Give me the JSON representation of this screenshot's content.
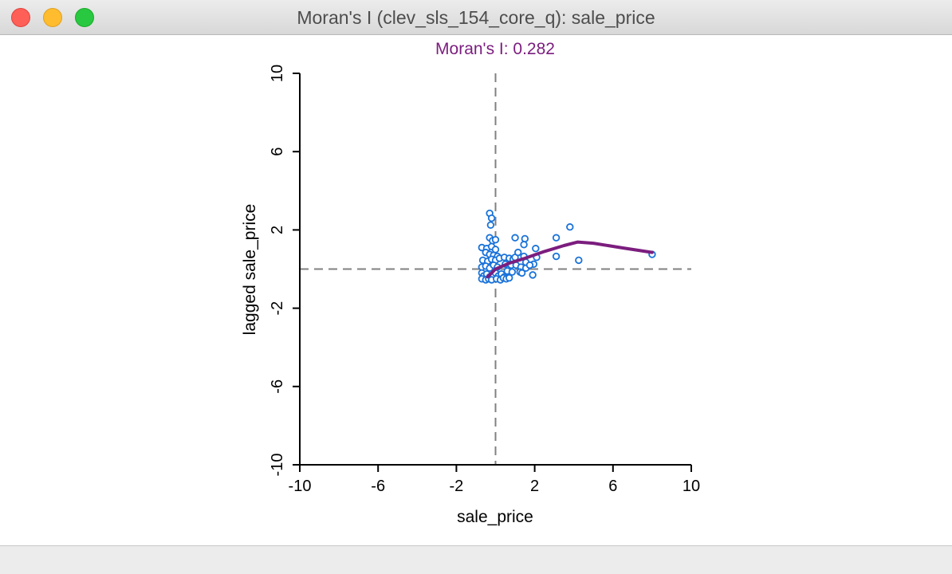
{
  "window": {
    "title": "Moran's I (clev_sls_154_core_q): sale_price"
  },
  "colors": {
    "title": "#7b1d7e",
    "points": "#1a73d9",
    "smoother": "#7b1d7e",
    "reference_lines": "#808080"
  },
  "chart_data": {
    "type": "scatter",
    "title": "Moran's I: 0.282",
    "xlabel": "sale_price",
    "ylabel": "lagged sale_price",
    "xlim": [
      -10,
      10
    ],
    "ylim": [
      -10,
      10
    ],
    "xticks": [
      "-10",
      "-6",
      "-2",
      "2",
      "6",
      "10"
    ],
    "yticks": [
      "-10",
      "-6",
      "-2",
      "2",
      "6",
      "10"
    ],
    "xtick_values": [
      -10,
      -6,
      -2,
      2,
      6,
      10
    ],
    "ytick_values": [
      -10,
      -6,
      -2,
      2,
      6,
      10
    ],
    "grid": false,
    "reference_lines": {
      "x": 0,
      "y": 0,
      "style": "dashed"
    },
    "points": [
      [
        -0.3,
        2.85
      ],
      [
        -0.2,
        2.6
      ],
      [
        -0.25,
        2.25
      ],
      [
        -0.3,
        1.6
      ],
      [
        -0.15,
        1.45
      ],
      [
        0.0,
        1.5
      ],
      [
        -0.7,
        1.1
      ],
      [
        -0.45,
        1.05
      ],
      [
        -0.2,
        1.15
      ],
      [
        0.0,
        1.0
      ],
      [
        -0.5,
        0.85
      ],
      [
        -0.3,
        0.75
      ],
      [
        -0.1,
        0.7
      ],
      [
        0.1,
        0.65
      ],
      [
        -0.65,
        0.45
      ],
      [
        -0.4,
        0.4
      ],
      [
        -0.2,
        0.5
      ],
      [
        0.0,
        0.45
      ],
      [
        0.2,
        0.55
      ],
      [
        -0.7,
        0.1
      ],
      [
        -0.5,
        0.15
      ],
      [
        -0.3,
        0.05
      ],
      [
        -0.1,
        0.2
      ],
      [
        0.1,
        0.1
      ],
      [
        -0.7,
        -0.2
      ],
      [
        -0.6,
        -0.35
      ],
      [
        -0.45,
        -0.25
      ],
      [
        -0.3,
        -0.4
      ],
      [
        -0.15,
        -0.3
      ],
      [
        0.0,
        -0.2
      ],
      [
        0.15,
        -0.35
      ],
      [
        0.3,
        -0.25
      ],
      [
        0.45,
        -0.4
      ],
      [
        -0.7,
        -0.5
      ],
      [
        -0.5,
        -0.55
      ],
      [
        -0.35,
        -0.5
      ],
      [
        -0.2,
        -0.55
      ],
      [
        0.05,
        -0.5
      ],
      [
        0.25,
        -0.55
      ],
      [
        0.4,
        -0.45
      ],
      [
        0.55,
        -0.5
      ],
      [
        0.7,
        -0.45
      ],
      [
        0.45,
        0.6
      ],
      [
        0.7,
        0.55
      ],
      [
        0.9,
        0.5
      ],
      [
        1.0,
        0.6
      ],
      [
        0.5,
        0.25
      ],
      [
        0.8,
        0.2
      ],
      [
        1.05,
        0.2
      ],
      [
        1.3,
        0.1
      ],
      [
        0.6,
        -0.1
      ],
      [
        0.85,
        -0.15
      ],
      [
        1.25,
        -0.15
      ],
      [
        1.55,
        0.05
      ],
      [
        1.95,
        0.25
      ],
      [
        2.1,
        0.6
      ],
      [
        1.0,
        1.6
      ],
      [
        1.5,
        1.55
      ],
      [
        1.45,
        1.25
      ],
      [
        1.15,
        0.85
      ],
      [
        1.45,
        0.65
      ],
      [
        1.55,
        0.35
      ],
      [
        1.75,
        0.2
      ],
      [
        1.35,
        -0.2
      ],
      [
        1.9,
        -0.3
      ],
      [
        2.05,
        1.05
      ],
      [
        3.1,
        1.6
      ],
      [
        3.1,
        0.65
      ],
      [
        3.8,
        2.15
      ],
      [
        4.25,
        0.45
      ],
      [
        8.0,
        0.75
      ]
    ],
    "smoother": [
      [
        -0.4,
        -0.4
      ],
      [
        0.0,
        0.0
      ],
      [
        0.7,
        0.3
      ],
      [
        1.5,
        0.55
      ],
      [
        2.5,
        0.9
      ],
      [
        3.5,
        1.2
      ],
      [
        4.2,
        1.38
      ],
      [
        5.0,
        1.32
      ],
      [
        6.5,
        1.08
      ],
      [
        8.0,
        0.85
      ]
    ]
  }
}
